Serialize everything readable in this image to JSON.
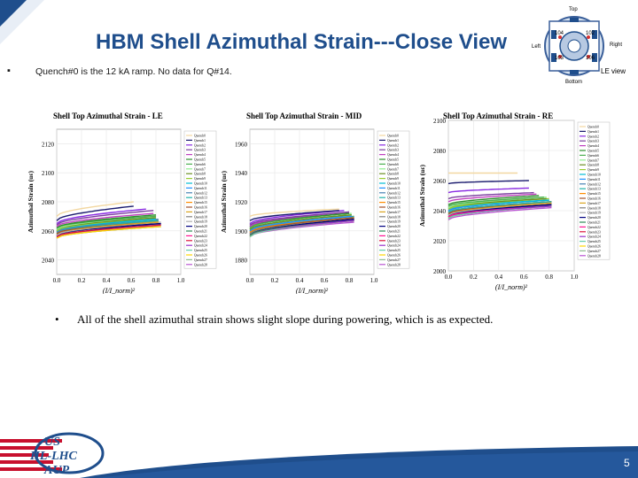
{
  "header": {
    "title": "HBM Shell Azimuthal Strain---Close View"
  },
  "bullets": [
    "Quench#0 is the 12 kA ramp. No data for Q#14.",
    "All of the shell azimuthal strain shows slight slope during powering, which is as expected."
  ],
  "bullet_markers": [
    "▪",
    "•"
  ],
  "diagram": {
    "top": "Top",
    "bottom": "Bottom",
    "left": "Left",
    "right": "Right",
    "view": "LE view",
    "gauges": [
      "104",
      "102",
      "103",
      "106"
    ]
  },
  "footer": {
    "page_number": "5",
    "logo_line1": "US",
    "logo_line2": "HL-LHC",
    "logo_line3": "AUP"
  },
  "colors": {
    "title": "#1f4e8c",
    "footer_bar": "#1f4e8c"
  },
  "legend_entries": [
    "Quench0",
    "Quench1",
    "Quench2",
    "Quench3",
    "Quench4",
    "Quench5",
    "Quench6",
    "Quench7",
    "Quench8",
    "Quench9",
    "Quench10",
    "Quench11",
    "Quench12",
    "Quench13",
    "Quench15",
    "Quench16",
    "Quench17",
    "Quench18",
    "Quench19",
    "Quench20",
    "Quench21",
    "Quench22",
    "Quench23",
    "Quench24",
    "Quench25",
    "Quench26",
    "Quench27",
    "Quench28"
  ],
  "chart_data": [
    {
      "type": "line",
      "title": "Shell Top Azimuthal Strain - LE",
      "xlabel": "(I/I_norm)²",
      "ylabel": "Azimuthal Strain (uε)",
      "xlim": [
        0.0,
        1.0
      ],
      "ylim": [
        2030,
        2130
      ],
      "xticks": [
        "0.0",
        "0.2",
        "0.4",
        "0.6",
        "0.8",
        "1.0"
      ],
      "yticks": [
        "2040",
        "2060",
        "2080",
        "2100",
        "2120"
      ],
      "series_start": [
        2070,
        2067,
        2065,
        2064,
        2063,
        2062,
        2062,
        2061,
        2061,
        2060,
        2060,
        2060,
        2059,
        2059,
        2059,
        2058,
        2058,
        2058,
        2057,
        2057,
        2057,
        2057,
        2056,
        2056,
        2056,
        2055,
        2055,
        2055
      ],
      "series_end": [
        2080,
        2077,
        2075,
        2074,
        2072,
        2071,
        2070,
        2070,
        2069,
        2069,
        2068,
        2068,
        2068,
        2067,
        2067,
        2067,
        2066,
        2066,
        2066,
        2065,
        2065,
        2065,
        2064,
        2064,
        2064,
        2063,
        2063,
        2063
      ],
      "series_xmax": [
        0.62,
        0.62,
        0.72,
        0.78,
        0.78,
        0.8,
        0.8,
        0.8,
        0.8,
        0.8,
        0.8,
        0.8,
        0.82,
        0.82,
        0.82,
        0.82,
        0.82,
        0.82,
        0.84,
        0.84,
        0.84,
        0.84,
        0.84,
        0.84,
        0.84,
        0.84,
        0.84,
        0.84
      ]
    },
    {
      "type": "line",
      "title": "Shell Top Azimuthal Strain - MID",
      "xlabel": "(I/I_norm)²",
      "ylabel": "Azimuthal Strain (uε)",
      "xlim": [
        0.0,
        1.0
      ],
      "ylim": [
        1870,
        1970
      ],
      "xticks": [
        "0.0",
        "0.2",
        "0.4",
        "0.6",
        "0.8",
        "1.0"
      ],
      "yticks": [
        "1880",
        "1900",
        "1920",
        "1940",
        "1960"
      ],
      "series_start": [
        1910,
        1907,
        1905,
        1904,
        1903,
        1903,
        1902,
        1902,
        1901,
        1901,
        1901,
        1900,
        1900,
        1900,
        1899,
        1899,
        1899,
        1898,
        1898,
        1898,
        1897,
        1897,
        1897,
        1897,
        1896,
        1896,
        1896,
        1896
      ],
      "series_end": [
        1915,
        1914,
        1914,
        1913,
        1913,
        1912,
        1912,
        1912,
        1911,
        1911,
        1911,
        1910,
        1910,
        1910,
        1910,
        1909,
        1909,
        1909,
        1909,
        1908,
        1908,
        1908,
        1908,
        1907,
        1907,
        1907,
        1907,
        1906
      ],
      "series_xmax": [
        0.72,
        0.72,
        0.76,
        0.8,
        0.8,
        0.8,
        0.8,
        0.82,
        0.82,
        0.82,
        0.82,
        0.82,
        0.82,
        0.84,
        0.84,
        0.84,
        0.84,
        0.84,
        0.84,
        0.84,
        0.84,
        0.84,
        0.84,
        0.84,
        0.84,
        0.84,
        0.84,
        0.84
      ]
    },
    {
      "type": "line",
      "title": "Shell Top Azimuthal Strain - RE",
      "xlabel": "(I/I_norm)²",
      "ylabel": "Azimuthal Strain (uε)",
      "xlim": [
        0.0,
        1.0
      ],
      "ylim": [
        2000,
        2100
      ],
      "xticks": [
        "0.0",
        "0.2",
        "0.4",
        "0.6",
        "0.8",
        "1.0"
      ],
      "yticks": [
        "2000",
        "2020",
        "2040",
        "2060",
        "2080",
        "2100"
      ],
      "series_start": [
        2065,
        2058,
        2052,
        2048,
        2046,
        2044,
        2043,
        2042,
        2042,
        2041,
        2041,
        2040,
        2040,
        2039,
        2039,
        2038,
        2038,
        2038,
        2037,
        2037,
        2037,
        2036,
        2036,
        2036,
        2035,
        2035,
        2035,
        2034
      ],
      "series_end": [
        2065,
        2060,
        2055,
        2052,
        2051,
        2050,
        2049,
        2049,
        2048,
        2048,
        2047,
        2047,
        2047,
        2046,
        2046,
        2046,
        2045,
        2045,
        2045,
        2044,
        2044,
        2044,
        2044,
        2043,
        2043,
        2043,
        2043,
        2042
      ],
      "series_xmax": [
        0.55,
        0.64,
        0.64,
        0.68,
        0.7,
        0.72,
        0.76,
        0.78,
        0.78,
        0.8,
        0.8,
        0.8,
        0.8,
        0.82,
        0.82,
        0.82,
        0.82,
        0.82,
        0.82,
        0.82,
        0.82,
        0.82,
        0.82,
        0.82,
        0.82,
        0.82,
        0.82,
        0.82
      ]
    }
  ]
}
